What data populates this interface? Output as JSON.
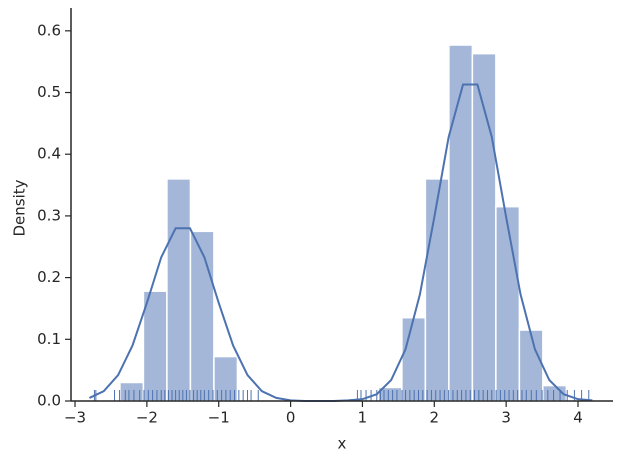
{
  "chart_data": {
    "type": "histogram",
    "xlabel": "x",
    "ylabel": "Density",
    "bins": [
      -2.375,
      -2.048,
      -1.721,
      -1.394,
      -1.067,
      -0.74,
      -0.413,
      -0.086,
      0.241,
      0.568,
      0.895,
      1.222,
      1.549,
      1.876,
      2.203,
      2.53,
      2.857,
      3.184,
      3.511,
      3.838
    ],
    "counts": [
      0.03,
      0.178,
      0.36,
      0.275,
      0.072,
      0,
      0,
      0,
      0,
      0,
      0,
      0.022,
      0.135,
      0.36,
      0.577,
      0.563,
      0.315,
      0.115,
      0.025
    ],
    "bar_color": "#a4b7d8",
    "kde": {
      "color": "#4c72b0",
      "x": [
        -2.8,
        -2.6,
        -2.4,
        -2.2,
        -2.0,
        -1.8,
        -1.6,
        -1.4,
        -1.2,
        -1.0,
        -0.8,
        -0.6,
        -0.4,
        -0.2,
        0,
        0.2,
        0.4,
        0.6,
        0.8,
        1.0,
        1.2,
        1.4,
        1.6,
        1.8,
        2.0,
        2.2,
        2.4,
        2.6,
        2.8,
        3.0,
        3.2,
        3.4,
        3.6,
        3.8,
        4.0,
        4.2
      ],
      "y": [
        0.005,
        0.016,
        0.042,
        0.09,
        0.159,
        0.233,
        0.28,
        0.28,
        0.233,
        0.159,
        0.09,
        0.042,
        0.016,
        0.005,
        0.001,
        0,
        0,
        0,
        0.001,
        0.003,
        0.011,
        0.034,
        0.084,
        0.173,
        0.298,
        0.428,
        0.513,
        0.513,
        0.428,
        0.298,
        0.173,
        0.084,
        0.034,
        0.011,
        0.003,
        0.001
      ]
    },
    "rug": {
      "color": "#4c72b0",
      "x": [
        -2.73,
        -2.71,
        -2.45,
        -2.38,
        -2.3,
        -2.25,
        -2.18,
        -2.1,
        -2.04,
        -1.98,
        -1.92,
        -1.86,
        -1.8,
        -1.75,
        -1.7,
        -1.65,
        -1.6,
        -1.55,
        -1.5,
        -1.45,
        -1.4,
        -1.35,
        -1.3,
        -1.25,
        -1.2,
        -1.14,
        -1.08,
        -1.02,
        -0.96,
        -0.9,
        -0.84,
        -0.78,
        -0.72,
        -0.66,
        -0.6,
        -0.55,
        -0.45,
        0.93,
        0.98,
        1.05,
        1.12,
        1.2,
        1.25,
        1.3,
        1.36,
        1.42,
        1.48,
        1.55,
        1.6,
        1.66,
        1.72,
        1.78,
        1.84,
        1.9,
        1.96,
        2.02,
        2.08,
        2.14,
        2.2,
        2.26,
        2.32,
        2.38,
        2.44,
        2.5,
        2.56,
        2.62,
        2.68,
        2.74,
        2.8,
        2.86,
        2.92,
        2.98,
        3.04,
        3.1,
        3.16,
        3.22,
        3.28,
        3.35,
        3.42,
        3.5,
        3.58,
        3.66,
        3.75,
        3.85,
        3.95,
        4.05,
        4.15
      ]
    },
    "xlim": [
      -3.056,
      4.487
    ],
    "ylim": [
      0,
      0.637
    ],
    "xticks": [
      {
        "value": -3,
        "label": "−3"
      },
      {
        "value": -2,
        "label": "−2"
      },
      {
        "value": -1,
        "label": "−1"
      },
      0,
      1,
      2,
      3,
      4
    ],
    "yticks": [
      {
        "value": 0,
        "label": "0.0"
      },
      0.1,
      0.2,
      0.3,
      0.4,
      0.5,
      0.6
    ]
  }
}
